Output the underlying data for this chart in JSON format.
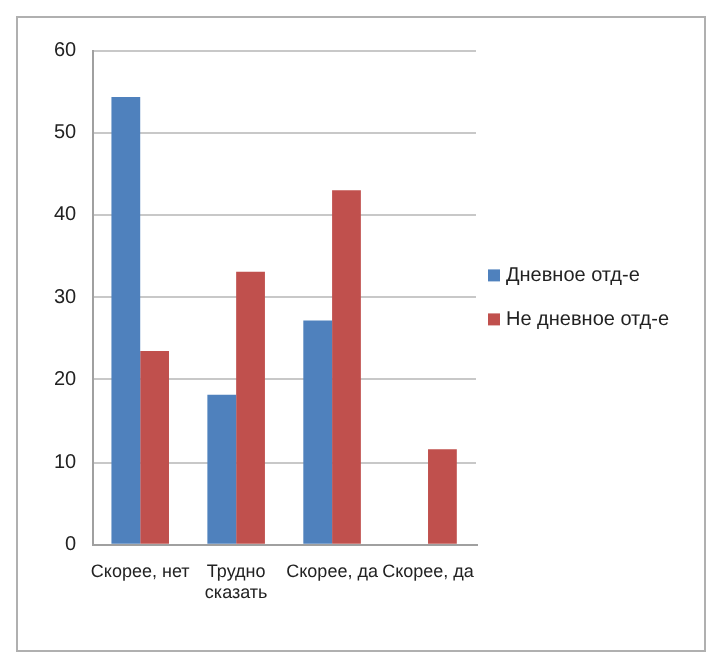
{
  "chart_data": {
    "type": "bar",
    "categories": [
      "Скорее, нет",
      "Трудно сказать",
      "Скорее, да",
      "Скорее, да"
    ],
    "series": [
      {
        "name": "Дневное отд-е",
        "color": "#4f81bd",
        "values": [
          54.3,
          18.2,
          27.2,
          null
        ]
      },
      {
        "name": "Не дневное отд-е",
        "color": "#c0504d",
        "values": [
          23.5,
          33.1,
          43.0,
          11.6
        ]
      }
    ],
    "ylim": [
      0,
      60
    ],
    "yticks": [
      0,
      10,
      20,
      30,
      40,
      50,
      60
    ],
    "grid": "y",
    "legend": "right"
  }
}
